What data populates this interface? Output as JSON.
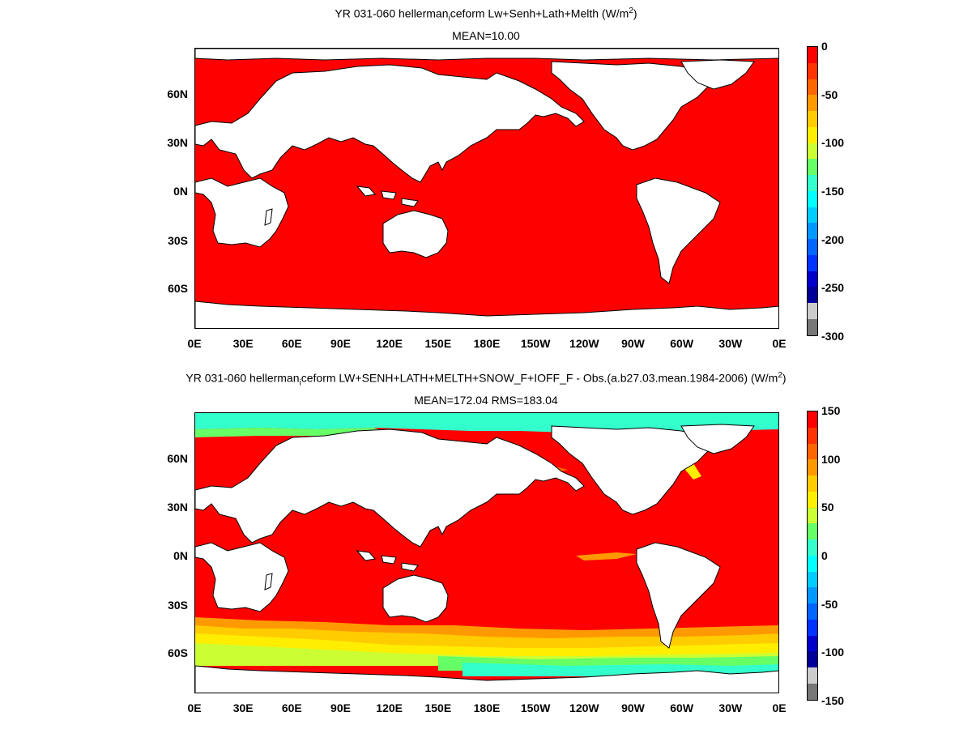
{
  "panels": [
    {
      "title_main": "YR 031-060 hellerman",
      "title_sub": "i",
      "title_rest": "ceform Lw+Senh+Lath+Melth (W/m",
      "title_sup": "2",
      "title_end": ")",
      "stats": "MEAN=10.00",
      "lat_labels": [
        "60N",
        "30N",
        "0N",
        "30S",
        "60S"
      ],
      "lon_labels": [
        "0E",
        "30E",
        "60E",
        "90E",
        "120E",
        "150E",
        "180E",
        "150W",
        "120W",
        "90W",
        "60W",
        "30W",
        "0E"
      ],
      "colorbar_labels": [
        "0",
        "-50",
        "-100",
        "-150",
        "-200",
        "-250",
        "-300"
      ],
      "colorbar_colors": [
        "#ff0000",
        "#ff3300",
        "#ff6600",
        "#ff9900",
        "#ffcc00",
        "#ffee00",
        "#ccff33",
        "#66ff66",
        "#33ffcc",
        "#00ffff",
        "#00ccff",
        "#0099ff",
        "#0066ff",
        "#0033ff",
        "#0000cc",
        "#000099",
        "#cccccc",
        "#777777"
      ],
      "field_color": "#ff0000"
    },
    {
      "title_main": "YR 031-060 hellerman",
      "title_sub": "i",
      "title_rest": "ceform LW+SENH+LATH+MELTH+SNOW_F+IOFF_F - Obs.(a.b27.03.mean.1984-2006) (W/m",
      "title_sup": "2",
      "title_end": ")",
      "stats": "MEAN=172.04 RMS=183.04",
      "lat_labels": [
        "60N",
        "30N",
        "0N",
        "30S",
        "60S"
      ],
      "lon_labels": [
        "0E",
        "30E",
        "60E",
        "90E",
        "120E",
        "150E",
        "180E",
        "150W",
        "120W",
        "90W",
        "60W",
        "30W",
        "0E"
      ],
      "colorbar_labels": [
        "150",
        "100",
        "50",
        "0",
        "-50",
        "-100",
        "-150"
      ],
      "colorbar_colors": [
        "#ff0000",
        "#ff3300",
        "#ff6600",
        "#ff9900",
        "#ffcc00",
        "#ffee00",
        "#ccff33",
        "#66ff66",
        "#33ffcc",
        "#00ffff",
        "#00ccff",
        "#0099ff",
        "#0066ff",
        "#0033ff",
        "#0000cc",
        "#000099",
        "#cccccc",
        "#777777"
      ],
      "field_color": "#ff0000"
    }
  ]
}
